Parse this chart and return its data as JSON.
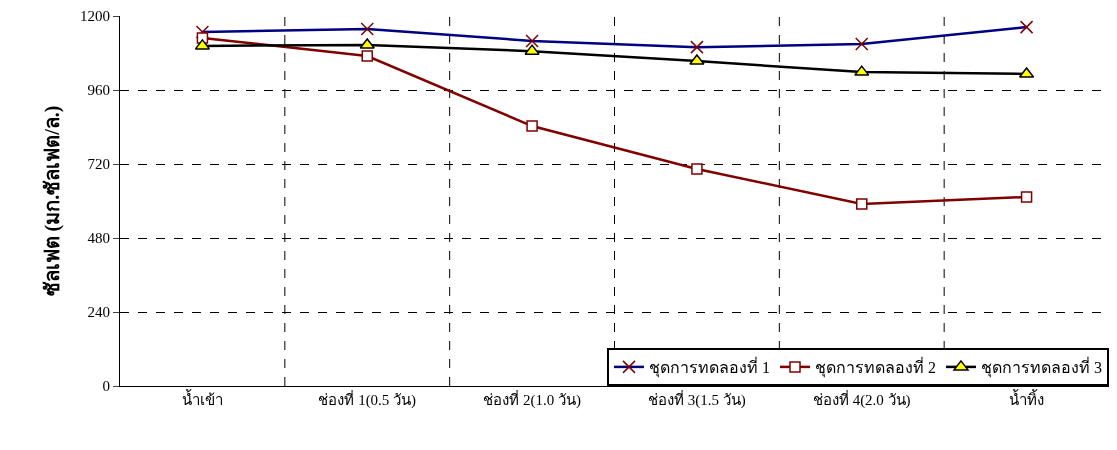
{
  "chart_data": {
    "type": "line",
    "ylabel": "ซัลเฟต (มก.ซัลเฟต/ล.)",
    "categories": [
      "น้ำเข้า",
      "ช่องที่ 1(0.5 วัน)",
      "ช่องที่ 2(1.0 วัน)",
      "ช่องที่ 3(1.5 วัน)",
      "ช่องที่ 4(2.0 วัน)",
      "น้ำทิ้ง"
    ],
    "series": [
      {
        "name": "ชุดการทดลองที่ 1",
        "color": "#000080",
        "marker": "cross",
        "colors": [
          "#800000",
          "#800000",
          "#800000",
          "#800000",
          "#800000",
          "#800000"
        ],
        "values": [
          1148,
          1158,
          1119,
          1099,
          1109,
          1164
        ]
      },
      {
        "name": "ชุดการทดลองที่ 2",
        "color": "#800000",
        "marker": "square",
        "colors": [
          "#ffffff",
          "#ffffff",
          "#ffffff",
          "#ffffff",
          "#ffffff",
          "#ffffff"
        ],
        "values": [
          1129,
          1070,
          843,
          704,
          590,
          613
        ]
      },
      {
        "name": "ชุดการทดลองที่ 3",
        "color": "#000000",
        "marker": "triangle",
        "colors": [
          "#ffff00",
          "#ffff00",
          "#ffff00",
          "#ffff00",
          "#ffff00",
          "#ffff00"
        ],
        "values": [
          1103,
          1106,
          1086,
          1054,
          1018,
          1012
        ]
      }
    ],
    "ylim": [
      0,
      1200
    ],
    "yticks": [
      0,
      240,
      480,
      720,
      960,
      1200
    ],
    "grid": true,
    "legend": "bottom right",
    "line_style": "solid"
  }
}
